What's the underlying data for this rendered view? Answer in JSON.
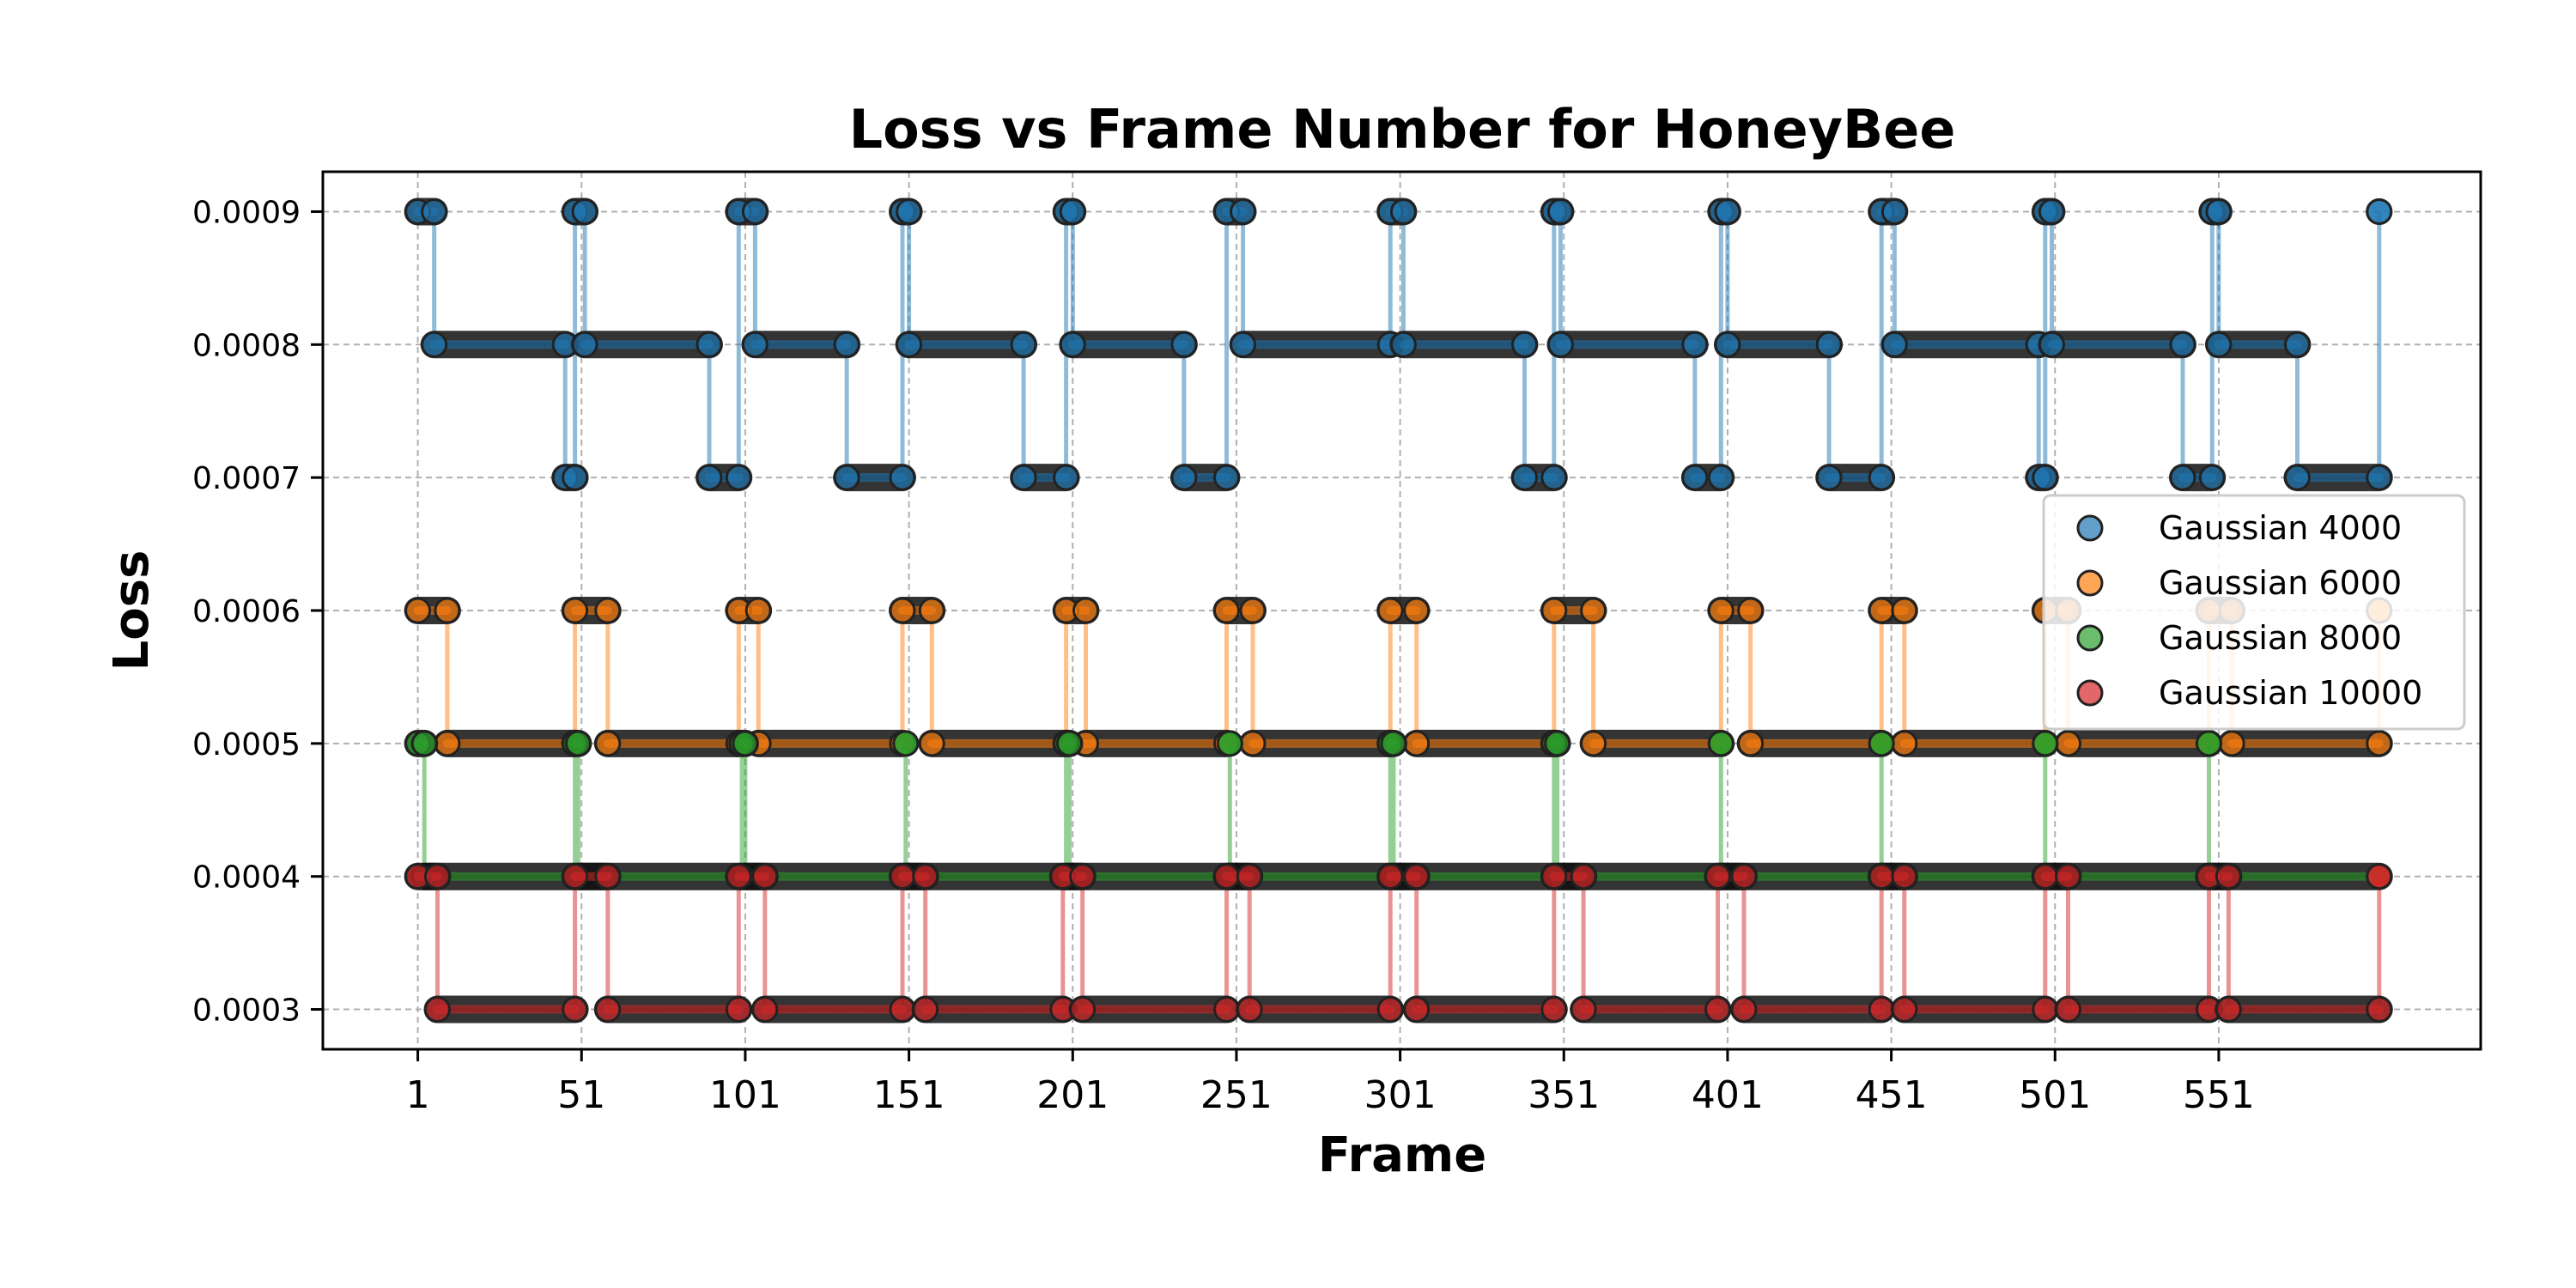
{
  "chart_data": {
    "type": "line",
    "title": "Loss vs Frame Number for HoneyBee",
    "xlabel": "Frame",
    "ylabel": "Loss",
    "xlim": [
      -28,
      631
    ],
    "ylim": [
      0.00027,
      0.00093
    ],
    "xticks": [
      1,
      51,
      101,
      151,
      201,
      251,
      301,
      351,
      401,
      451,
      501,
      551
    ],
    "xtick_labels": [
      "1",
      "51",
      "101",
      "151",
      "201",
      "251",
      "301",
      "351",
      "401",
      "451",
      "501",
      "551"
    ],
    "yticks": [
      0.0003,
      0.0004,
      0.0005,
      0.0006,
      0.0007,
      0.0008,
      0.0009
    ],
    "ytick_labels": [
      "0.0003",
      "0.0004",
      "0.0005",
      "0.0006",
      "0.0007",
      "0.0008",
      "0.0009"
    ],
    "grid": true,
    "legend_position": "center-right",
    "markers": true,
    "series": [
      {
        "name": "Gaussian 4000",
        "color": "#1f77b4",
        "segments": [
          [
            1,
            0.0009,
            6
          ],
          [
            6,
            0.0008,
            46
          ],
          [
            46,
            0.0007,
            49
          ],
          [
            49,
            0.0009,
            52
          ],
          [
            52,
            0.0008,
            90
          ],
          [
            90,
            0.0007,
            99
          ],
          [
            99,
            0.0009,
            104
          ],
          [
            104,
            0.0008,
            132
          ],
          [
            132,
            0.0007,
            149
          ],
          [
            149,
            0.0009,
            151
          ],
          [
            151,
            0.0008,
            186
          ],
          [
            186,
            0.0007,
            199
          ],
          [
            199,
            0.0009,
            201
          ],
          [
            201,
            0.0008,
            235
          ],
          [
            235,
            0.0007,
            248
          ],
          [
            248,
            0.0009,
            253
          ],
          [
            253,
            0.0008,
            298
          ],
          [
            298,
            0.0009,
            302
          ],
          [
            302,
            0.0008,
            339
          ],
          [
            339,
            0.0007,
            348
          ],
          [
            348,
            0.0009,
            350
          ],
          [
            350,
            0.0008,
            391
          ],
          [
            391,
            0.0007,
            399
          ],
          [
            399,
            0.0009,
            401
          ],
          [
            401,
            0.0008,
            432
          ],
          [
            432,
            0.0007,
            448
          ],
          [
            448,
            0.0009,
            452
          ],
          [
            452,
            0.0008,
            496
          ],
          [
            496,
            0.0007,
            498
          ],
          [
            498,
            0.0009,
            500
          ],
          [
            500,
            0.0008,
            540
          ],
          [
            540,
            0.0007,
            549
          ],
          [
            549,
            0.0009,
            551
          ],
          [
            551,
            0.0008,
            575
          ],
          [
            575,
            0.0007,
            600
          ],
          [
            600,
            0.0009,
            600
          ]
        ]
      },
      {
        "name": "Gaussian 6000",
        "color": "#ff7f0e",
        "segments": [
          [
            1,
            0.0006,
            10
          ],
          [
            10,
            0.0005,
            49
          ],
          [
            49,
            0.0006,
            59
          ],
          [
            59,
            0.0005,
            99
          ],
          [
            99,
            0.0006,
            105
          ],
          [
            105,
            0.0005,
            149
          ],
          [
            149,
            0.0006,
            158
          ],
          [
            158,
            0.0005,
            199
          ],
          [
            199,
            0.0006,
            205
          ],
          [
            205,
            0.0005,
            248
          ],
          [
            248,
            0.0006,
            256
          ],
          [
            256,
            0.0005,
            298
          ],
          [
            298,
            0.0006,
            306
          ],
          [
            306,
            0.0005,
            348
          ],
          [
            348,
            0.0006,
            360
          ],
          [
            360,
            0.0005,
            399
          ],
          [
            399,
            0.0006,
            408
          ],
          [
            408,
            0.0005,
            448
          ],
          [
            448,
            0.0006,
            455
          ],
          [
            455,
            0.0005,
            498
          ],
          [
            498,
            0.0006,
            505
          ],
          [
            505,
            0.0005,
            548
          ],
          [
            548,
            0.0006,
            555
          ],
          [
            555,
            0.0005,
            600
          ],
          [
            600,
            0.0006,
            600
          ]
        ]
      },
      {
        "name": "Gaussian 8000",
        "color": "#2ca02c",
        "segments": [
          [
            1,
            0.0005,
            3
          ],
          [
            3,
            0.0004,
            49
          ],
          [
            49,
            0.0005,
            50
          ],
          [
            50,
            0.0004,
            100
          ],
          [
            100,
            0.0005,
            101
          ],
          [
            101,
            0.0004,
            150
          ],
          [
            150,
            0.0005,
            150
          ],
          [
            150,
            0.0004,
            199
          ],
          [
            199,
            0.0005,
            200
          ],
          [
            200,
            0.0004,
            249
          ],
          [
            249,
            0.0005,
            249
          ],
          [
            249,
            0.0004,
            298
          ],
          [
            298,
            0.0005,
            299
          ],
          [
            299,
            0.0004,
            348
          ],
          [
            348,
            0.0005,
            349
          ],
          [
            349,
            0.0004,
            399
          ],
          [
            399,
            0.0005,
            399
          ],
          [
            399,
            0.0004,
            448
          ],
          [
            448,
            0.0005,
            448
          ],
          [
            448,
            0.0004,
            498
          ],
          [
            498,
            0.0005,
            498
          ],
          [
            498,
            0.0004,
            548
          ],
          [
            548,
            0.0005,
            548
          ],
          [
            548,
            0.0004,
            600
          ]
        ]
      },
      {
        "name": "Gaussian 10000",
        "color": "#d62728",
        "segments": [
          [
            1,
            0.0004,
            7
          ],
          [
            7,
            0.0003,
            49
          ],
          [
            49,
            0.0004,
            59
          ],
          [
            59,
            0.0003,
            99
          ],
          [
            99,
            0.0004,
            107
          ],
          [
            107,
            0.0003,
            149
          ],
          [
            149,
            0.0004,
            156
          ],
          [
            156,
            0.0003,
            198
          ],
          [
            198,
            0.0004,
            204
          ],
          [
            204,
            0.0003,
            248
          ],
          [
            248,
            0.0004,
            255
          ],
          [
            255,
            0.0003,
            298
          ],
          [
            298,
            0.0004,
            306
          ],
          [
            306,
            0.0003,
            348
          ],
          [
            348,
            0.0004,
            357
          ],
          [
            357,
            0.0003,
            398
          ],
          [
            398,
            0.0004,
            406
          ],
          [
            406,
            0.0003,
            448
          ],
          [
            448,
            0.0004,
            455
          ],
          [
            455,
            0.0003,
            498
          ],
          [
            498,
            0.0004,
            505
          ],
          [
            505,
            0.0003,
            548
          ],
          [
            548,
            0.0004,
            554
          ],
          [
            554,
            0.0003,
            600
          ],
          [
            600,
            0.0004,
            600
          ]
        ]
      }
    ]
  }
}
